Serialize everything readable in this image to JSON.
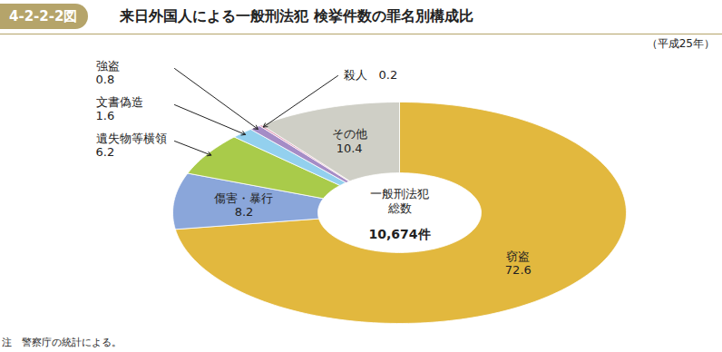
{
  "chart_data": {
    "type": "pie",
    "figure_label": "4-2-2-2図",
    "title": "来日外国人による一般刑法犯 検挙件数の罪名別構成比",
    "subtitle": "（平成25年）",
    "categories": [
      "窃盗",
      "傷害・暴行",
      "遺失物等横領",
      "文書偽造",
      "強盗",
      "殺人",
      "その他"
    ],
    "values": [
      72.6,
      8.2,
      6.2,
      1.6,
      0.8,
      0.2,
      10.4
    ],
    "colors": [
      "#e2b83e",
      "#8aa6da",
      "#a9cb4a",
      "#93d0ee",
      "#a58cc6",
      "#e39bb8",
      "#cfcfc6"
    ],
    "data_labels": true,
    "center_text": [
      "一般刑法犯",
      "総数"
    ],
    "total": {
      "value": 10674,
      "label": "10,674件"
    },
    "note": "注　警察庁の統計による。"
  }
}
